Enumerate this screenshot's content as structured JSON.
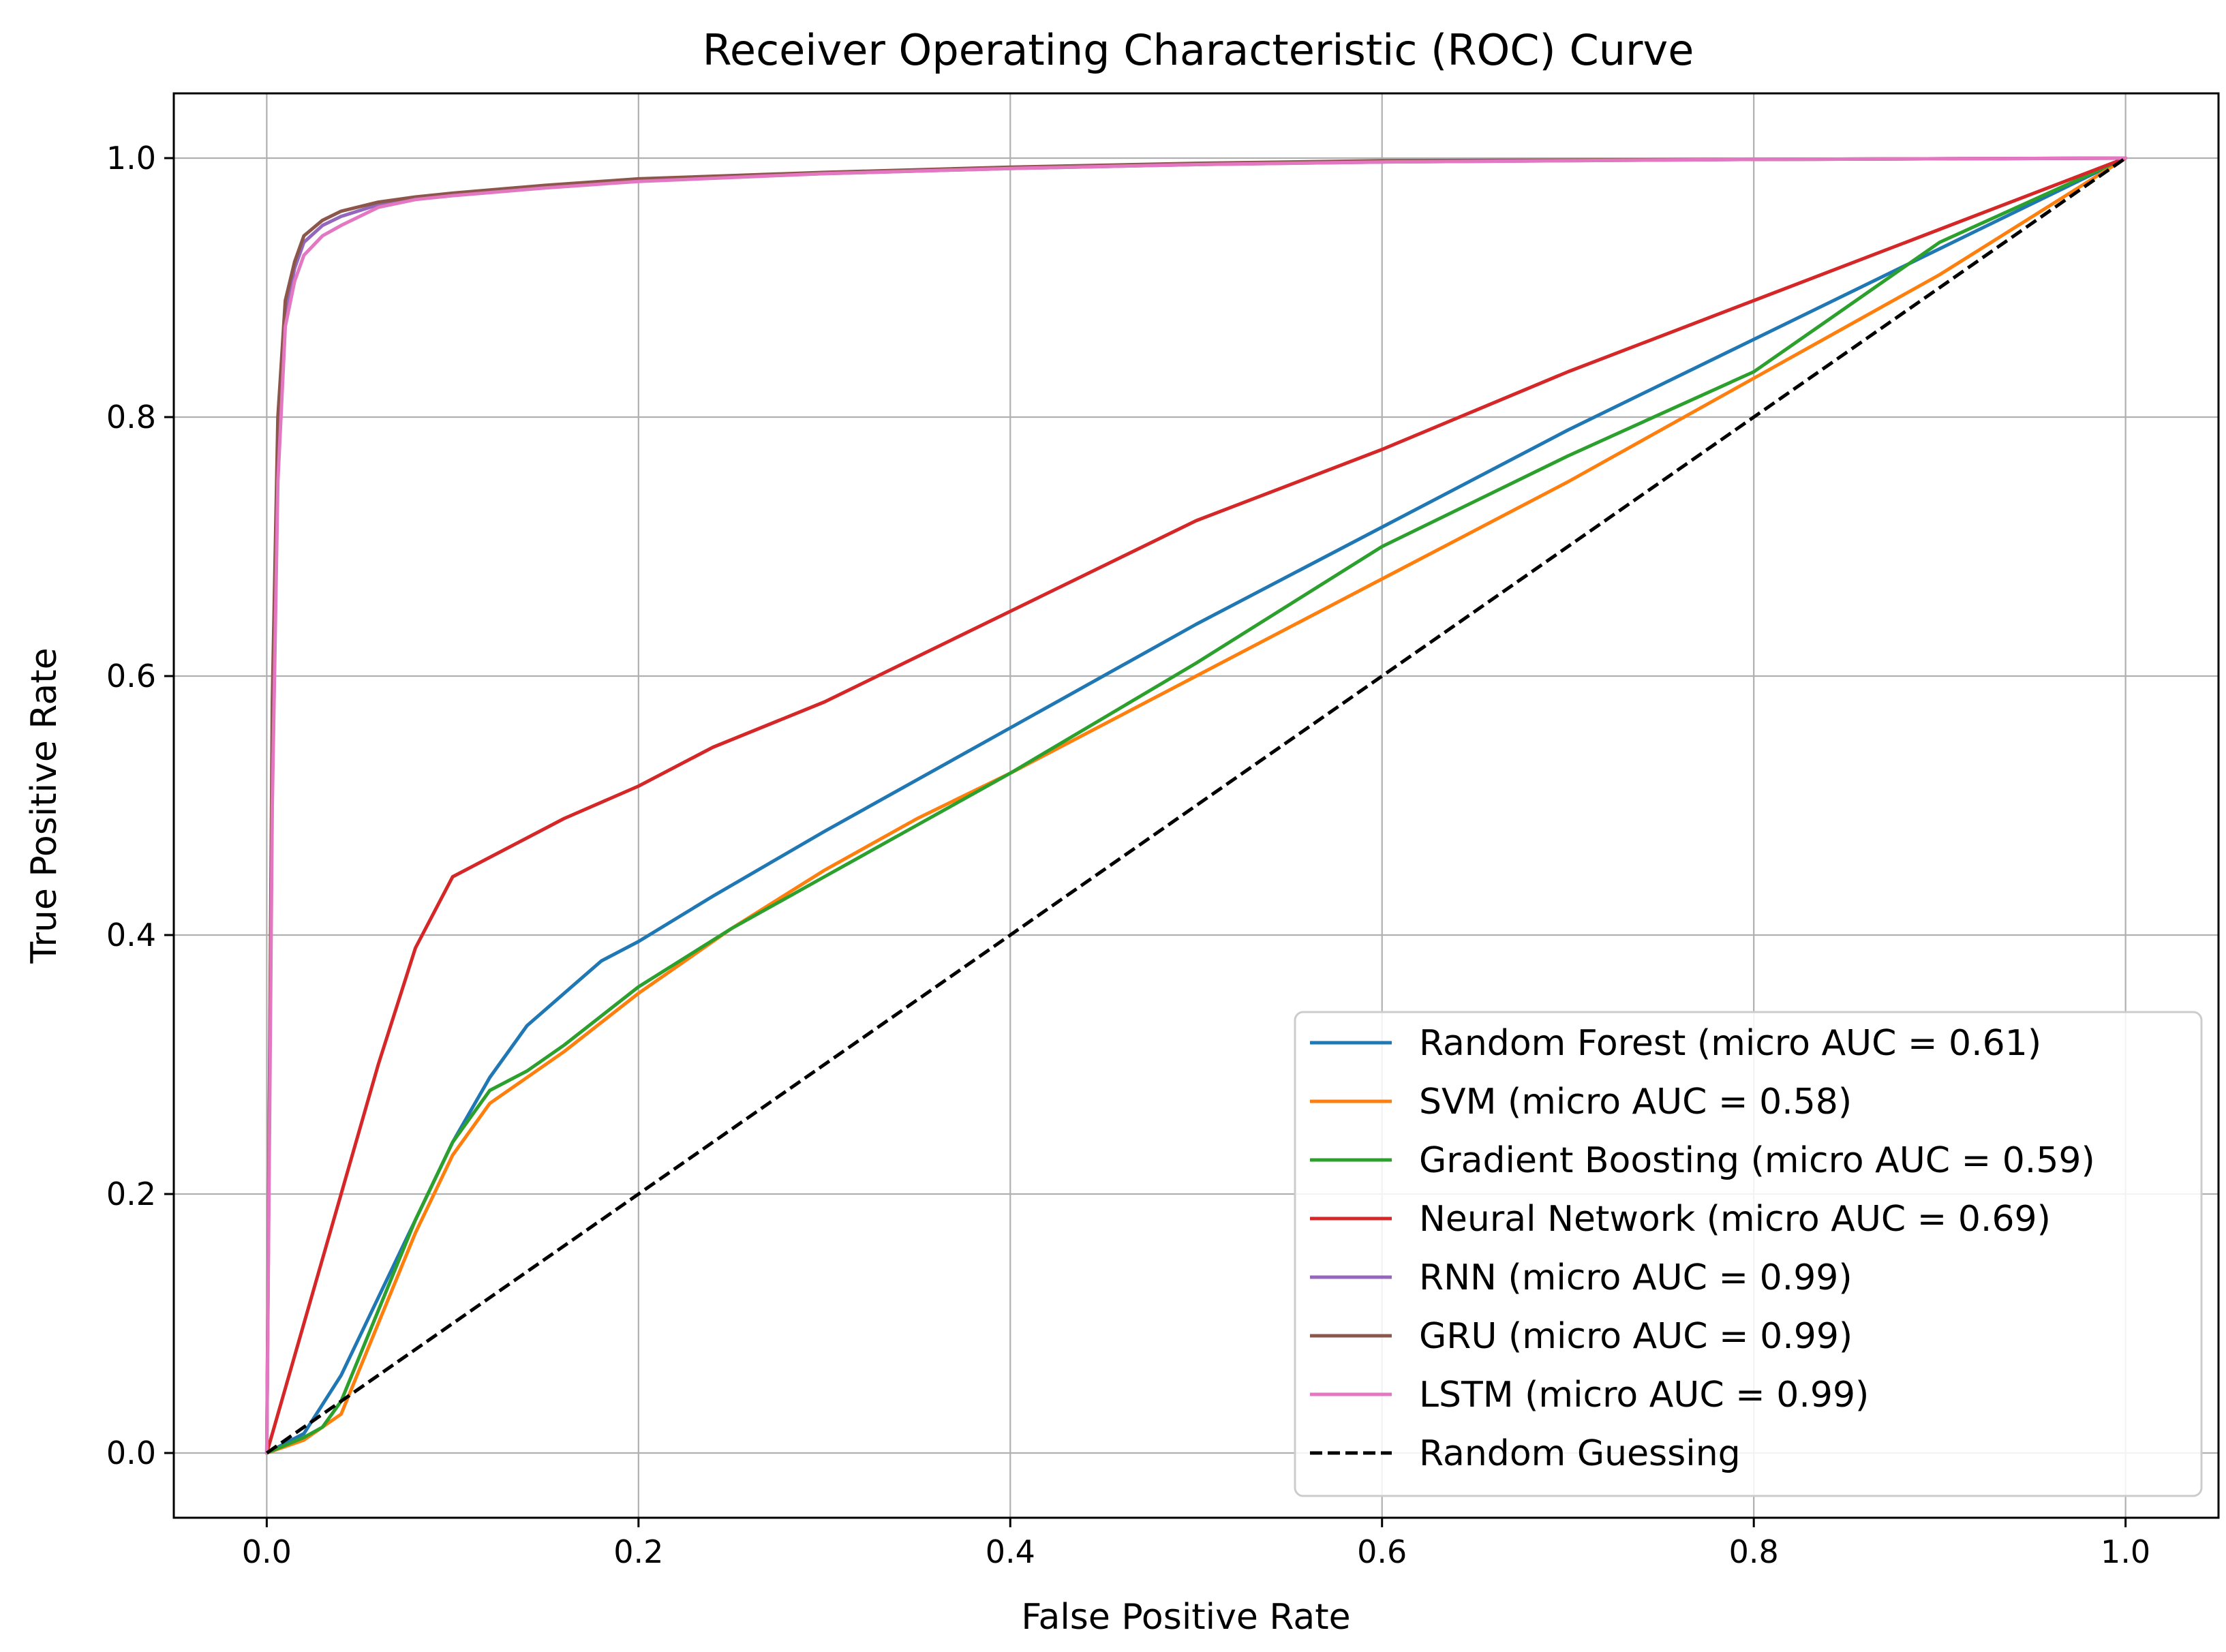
{
  "chart_data": {
    "type": "line",
    "title": "Receiver Operating Characteristic (ROC) Curve",
    "xlabel": "False Positive Rate",
    "ylabel": "True Positive Rate",
    "xlim": [
      -0.05,
      1.05
    ],
    "ylim": [
      -0.05,
      1.05
    ],
    "grid": true,
    "legend_position": "lower-right",
    "xticks": [
      0.0,
      0.2,
      0.4,
      0.6,
      0.8,
      1.0
    ],
    "yticks": [
      0.0,
      0.2,
      0.4,
      0.6,
      0.8,
      1.0
    ],
    "xtick_labels": [
      "0.0",
      "0.2",
      "0.4",
      "0.6",
      "0.8",
      "1.0"
    ],
    "ytick_labels": [
      "0.0",
      "0.2",
      "0.4",
      "0.6",
      "0.8",
      "1.0"
    ],
    "series": [
      {
        "name": "Random Forest (micro AUC = 0.61)",
        "color": "#1f77b4",
        "dash": "solid",
        "x": [
          0,
          0.02,
          0.04,
          0.06,
          0.08,
          0.1,
          0.12,
          0.14,
          0.16,
          0.18,
          0.2,
          0.24,
          0.3,
          0.4,
          0.5,
          0.6,
          0.7,
          0.8,
          0.9,
          1.0
        ],
        "y": [
          0,
          0.015,
          0.06,
          0.12,
          0.18,
          0.24,
          0.29,
          0.33,
          0.355,
          0.38,
          0.395,
          0.43,
          0.48,
          0.56,
          0.64,
          0.715,
          0.79,
          0.86,
          0.93,
          1.0
        ]
      },
      {
        "name": "SVM (micro AUC = 0.58)",
        "color": "#ff7f0e",
        "dash": "solid",
        "x": [
          0,
          0.02,
          0.04,
          0.06,
          0.08,
          0.1,
          0.12,
          0.14,
          0.16,
          0.2,
          0.25,
          0.3,
          0.35,
          0.4,
          0.5,
          0.6,
          0.7,
          0.8,
          0.9,
          1.0
        ],
        "y": [
          0,
          0.01,
          0.03,
          0.1,
          0.17,
          0.23,
          0.27,
          0.29,
          0.31,
          0.355,
          0.405,
          0.45,
          0.49,
          0.525,
          0.6,
          0.675,
          0.75,
          0.83,
          0.91,
          1.0
        ]
      },
      {
        "name": "Gradient Boosting (micro AUC = 0.59)",
        "color": "#2ca02c",
        "dash": "solid",
        "x": [
          0,
          0.02,
          0.03,
          0.04,
          0.06,
          0.08,
          0.1,
          0.12,
          0.14,
          0.16,
          0.2,
          0.25,
          0.3,
          0.35,
          0.4,
          0.5,
          0.6,
          0.7,
          0.8,
          0.9,
          1.0
        ],
        "y": [
          0,
          0.012,
          0.02,
          0.04,
          0.11,
          0.18,
          0.24,
          0.28,
          0.295,
          0.315,
          0.36,
          0.405,
          0.445,
          0.485,
          0.525,
          0.61,
          0.7,
          0.77,
          0.835,
          0.935,
          1.0
        ]
      },
      {
        "name": "Neural Network (micro AUC = 0.69)",
        "color": "#d62728",
        "dash": "solid",
        "x": [
          0,
          0.02,
          0.04,
          0.06,
          0.08,
          0.1,
          0.12,
          0.14,
          0.16,
          0.2,
          0.24,
          0.3,
          0.35,
          0.4,
          0.45,
          0.5,
          0.6,
          0.7,
          0.8,
          0.9,
          1.0
        ],
        "y": [
          0,
          0.1,
          0.2,
          0.3,
          0.39,
          0.445,
          0.46,
          0.475,
          0.49,
          0.515,
          0.545,
          0.58,
          0.615,
          0.65,
          0.685,
          0.72,
          0.775,
          0.835,
          0.89,
          0.945,
          1.0
        ]
      },
      {
        "name": "RNN (micro AUC = 0.99)",
        "color": "#9467bd",
        "dash": "solid",
        "x": [
          0,
          0.003,
          0.006,
          0.01,
          0.015,
          0.02,
          0.03,
          0.04,
          0.06,
          0.08,
          0.1,
          0.15,
          0.2,
          0.3,
          0.4,
          0.5,
          0.6,
          0.8,
          1.0
        ],
        "y": [
          0,
          0.55,
          0.78,
          0.88,
          0.915,
          0.935,
          0.948,
          0.955,
          0.964,
          0.969,
          0.972,
          0.978,
          0.983,
          0.988,
          0.992,
          0.995,
          0.997,
          0.999,
          1.0
        ]
      },
      {
        "name": "GRU (micro AUC = 0.99)",
        "color": "#8c564b",
        "dash": "solid",
        "x": [
          0,
          0.003,
          0.006,
          0.01,
          0.015,
          0.02,
          0.03,
          0.04,
          0.06,
          0.08,
          0.1,
          0.15,
          0.2,
          0.3,
          0.4,
          0.5,
          0.6,
          0.8,
          1.0
        ],
        "y": [
          0,
          0.58,
          0.8,
          0.89,
          0.92,
          0.94,
          0.952,
          0.959,
          0.966,
          0.97,
          0.973,
          0.979,
          0.984,
          0.989,
          0.993,
          0.996,
          0.998,
          0.999,
          1.0
        ]
      },
      {
        "name": "LSTM (micro AUC = 0.99)",
        "color": "#e377c2",
        "dash": "solid",
        "x": [
          0,
          0.003,
          0.006,
          0.01,
          0.015,
          0.02,
          0.03,
          0.04,
          0.06,
          0.08,
          0.1,
          0.15,
          0.2,
          0.3,
          0.4,
          0.5,
          0.6,
          0.8,
          1.0
        ],
        "y": [
          0,
          0.5,
          0.75,
          0.87,
          0.905,
          0.925,
          0.94,
          0.948,
          0.962,
          0.968,
          0.971,
          0.977,
          0.982,
          0.988,
          0.992,
          0.995,
          0.997,
          0.999,
          1.0
        ]
      },
      {
        "name": "Random Guessing",
        "color": "#000000",
        "dash": "dashed",
        "x": [
          0,
          1
        ],
        "y": [
          0,
          1
        ]
      }
    ]
  }
}
